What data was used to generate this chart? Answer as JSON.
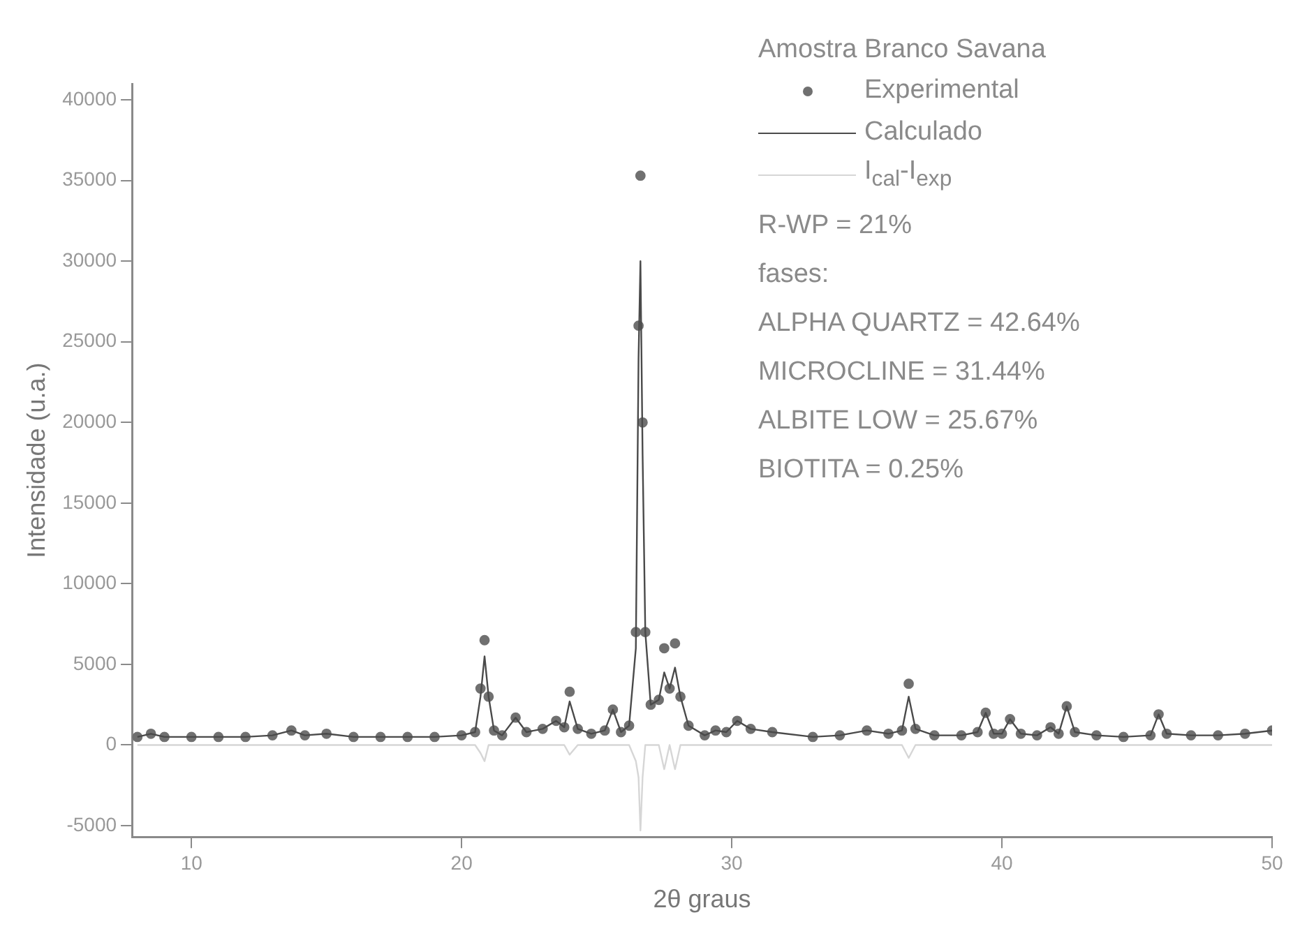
{
  "chart_data": {
    "type": "scatter",
    "xlabel": "2θ graus",
    "ylabel": "Intensidade (u.a.)",
    "legend_title": "Amostra Branco Savana",
    "x": [
      8,
      8.5,
      9,
      10,
      11,
      12,
      13,
      13.7,
      14.2,
      15,
      16,
      17,
      18,
      19,
      20,
      20.5,
      20.7,
      20.85,
      21,
      21.2,
      21.5,
      22,
      22.4,
      23,
      23.5,
      23.8,
      24.0,
      24.3,
      24.8,
      25.3,
      25.6,
      25.9,
      26.2,
      26.45,
      26.55,
      26.62,
      26.7,
      26.8,
      27.0,
      27.3,
      27.5,
      27.7,
      27.9,
      28.1,
      28.4,
      29,
      29.4,
      29.8,
      30.2,
      30.7,
      31.5,
      33,
      34,
      35,
      35.8,
      36.3,
      36.55,
      36.8,
      37.5,
      38.5,
      39.1,
      39.4,
      39.7,
      40.0,
      40.3,
      40.7,
      41.3,
      41.8,
      42.1,
      42.4,
      42.7,
      43.5,
      44.5,
      45.5,
      45.8,
      46.1,
      47,
      48,
      49,
      50
    ],
    "series": [
      {
        "name": "Experimental",
        "color": "#707070",
        "marker": "circle",
        "values": [
          500,
          700,
          500,
          500,
          500,
          500,
          600,
          900,
          600,
          700,
          500,
          500,
          500,
          500,
          600,
          800,
          3500,
          6500,
          3000,
          900,
          600,
          1700,
          800,
          1000,
          1500,
          1100,
          3300,
          1000,
          700,
          900,
          2200,
          800,
          1200,
          7000,
          26000,
          35300,
          20000,
          7000,
          2500,
          2800,
          6000,
          3500,
          6300,
          3000,
          1200,
          600,
          900,
          800,
          1500,
          1000,
          800,
          500,
          600,
          900,
          700,
          900,
          3800,
          1000,
          600,
          600,
          800,
          2000,
          700,
          700,
          1600,
          700,
          600,
          1100,
          700,
          2400,
          800,
          600,
          500,
          600,
          1900,
          700,
          600,
          600,
          700,
          900
        ]
      },
      {
        "name": "Calculado",
        "type": "line",
        "color": "#4a4a4a",
        "marker": "none",
        "line_style": "solid",
        "values": [
          500,
          700,
          500,
          500,
          500,
          500,
          600,
          900,
          600,
          700,
          500,
          500,
          500,
          500,
          600,
          800,
          3000,
          5500,
          3000,
          900,
          600,
          1700,
          800,
          1000,
          1500,
          1100,
          2700,
          1000,
          700,
          900,
          2200,
          800,
          1200,
          6000,
          24000,
          30000,
          18000,
          7000,
          2500,
          2800,
          4500,
          3500,
          4800,
          3000,
          1200,
          600,
          900,
          800,
          1500,
          1000,
          800,
          500,
          600,
          900,
          700,
          900,
          3000,
          1000,
          600,
          600,
          800,
          2000,
          700,
          700,
          1600,
          700,
          600,
          1100,
          700,
          2400,
          800,
          600,
          500,
          600,
          1900,
          700,
          600,
          600,
          700,
          900
        ]
      },
      {
        "name": "I$_{cal}$-I$_{exp}$",
        "type": "line",
        "color": "#d6d6d6",
        "marker": "none",
        "line_style": "solid",
        "values": [
          0,
          0,
          0,
          0,
          0,
          0,
          0,
          0,
          0,
          0,
          0,
          0,
          0,
          0,
          0,
          0,
          -500,
          -1000,
          0,
          0,
          0,
          0,
          0,
          0,
          0,
          0,
          -600,
          0,
          0,
          0,
          0,
          0,
          0,
          -1000,
          -2000,
          -5300,
          -2000,
          0,
          0,
          0,
          -1500,
          0,
          -1500,
          0,
          0,
          0,
          0,
          0,
          0,
          0,
          0,
          0,
          0,
          0,
          0,
          0,
          -800,
          0,
          0,
          0,
          0,
          0,
          0,
          0,
          0,
          0,
          0,
          0,
          0,
          0,
          0,
          0,
          0,
          0,
          0,
          0,
          0,
          0,
          0,
          0
        ]
      }
    ],
    "xlim": [
      7.8,
      50
    ],
    "xticks": [
      10,
      20,
      30,
      40,
      50
    ],
    "ylim": [
      -5700,
      41000
    ],
    "yticks": [
      -5000,
      0,
      5000,
      10000,
      15000,
      20000,
      25000,
      30000,
      35000,
      40000
    ],
    "grid": false,
    "legend": "top right",
    "annotations": [
      "R-WP = 21%",
      "fases:",
      "ALPHA QUARTZ = 42.64%",
      "MICROCLINE = 31.44%",
      "ALBITE LOW = 25.67%",
      "BIOTITA = 0.25%"
    ]
  }
}
